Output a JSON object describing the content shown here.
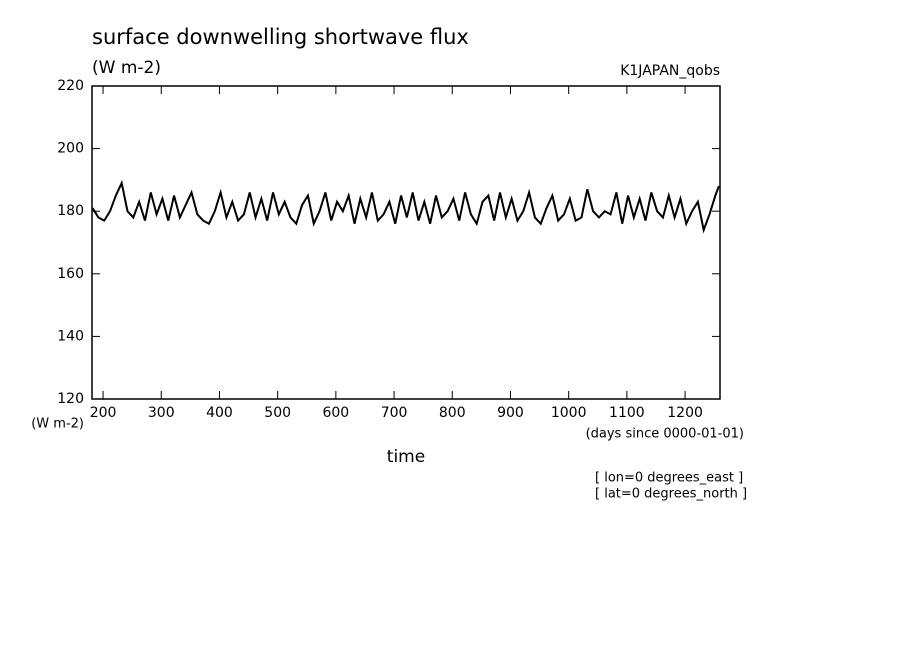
{
  "chart_data": {
    "type": "line",
    "title": "surface downwelling shortwave flux",
    "subtitle": "(W m-2)",
    "dataset": "K1JAPAN_qobs",
    "y_label": "(W m-2)",
    "x_units": "(days since 0000-01-01)",
    "x_label": "time",
    "annotations": [
      "[ lon=0 degrees_east ]",
      "[ lat=0 degrees_north ]"
    ],
    "x": [
      182,
      192,
      202,
      212,
      222,
      232,
      242,
      252,
      262,
      272,
      282,
      292,
      302,
      312,
      322,
      332,
      342,
      352,
      362,
      372,
      382,
      392,
      402,
      412,
      422,
      432,
      442,
      452,
      462,
      472,
      482,
      492,
      502,
      512,
      522,
      532,
      542,
      552,
      562,
      572,
      582,
      592,
      602,
      612,
      622,
      632,
      642,
      652,
      662,
      672,
      682,
      692,
      702,
      712,
      722,
      732,
      742,
      752,
      762,
      772,
      782,
      792,
      802,
      812,
      822,
      832,
      842,
      852,
      862,
      872,
      882,
      892,
      902,
      912,
      922,
      932,
      942,
      952,
      962,
      972,
      982,
      992,
      1002,
      1012,
      1022,
      1032,
      1042,
      1052,
      1062,
      1072,
      1082,
      1092,
      1102,
      1112,
      1122,
      1132,
      1142,
      1152,
      1162,
      1172,
      1182,
      1192,
      1202,
      1212,
      1222,
      1232,
      1242,
      1252,
      1258
    ],
    "series": [
      {
        "color": "#000000",
        "values": [
          181,
          178,
          177,
          180,
          185,
          189,
          180,
          178,
          183,
          177,
          186,
          179,
          184,
          177,
          185,
          178,
          182,
          186,
          179,
          177,
          176,
          180,
          186,
          178,
          183,
          177,
          179,
          186,
          178,
          184,
          177,
          186,
          179,
          183,
          178,
          176,
          182,
          185,
          176,
          180,
          186,
          177,
          183,
          180,
          185,
          176,
          184,
          178,
          186,
          177,
          179,
          183,
          176,
          185,
          178,
          186,
          177,
          183,
          176,
          185,
          178,
          180,
          184,
          177,
          186,
          179,
          176,
          183,
          185,
          177,
          186,
          178,
          184,
          177,
          180,
          186,
          178,
          176,
          181,
          185,
          177,
          179,
          184,
          177,
          178,
          187,
          180,
          178,
          180,
          179,
          186,
          176,
          185,
          178,
          184,
          177,
          186,
          180,
          178,
          185,
          178,
          184,
          176,
          180,
          183,
          174,
          179,
          185,
          188
        ]
      }
    ],
    "xlim": [
      181,
      1260
    ],
    "ylim": [
      120,
      220
    ],
    "xticks": [
      200,
      300,
      400,
      500,
      600,
      700,
      800,
      900,
      1000,
      1100,
      1200
    ],
    "yticks": [
      120,
      140,
      160,
      180,
      200,
      220
    ]
  }
}
